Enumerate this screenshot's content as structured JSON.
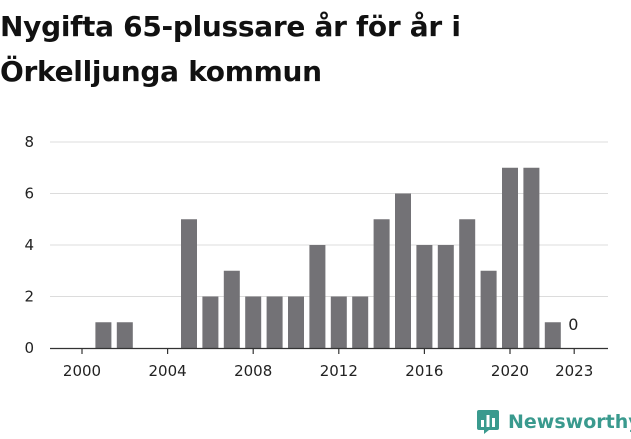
{
  "title": "Nygifta 65-plussare år för år i Örkelljunga kommun",
  "brand": {
    "name": "Newsworthy",
    "color": "#3a9a8e"
  },
  "colors": {
    "bar": "#737276",
    "grid": "#dcdcdc",
    "axis": "#333333"
  },
  "chart_data": {
    "type": "bar",
    "title": "Nygifta 65-plussare år för år i Örkelljunga kommun",
    "xlabel": "",
    "ylabel": "",
    "categories": [
      "2000",
      "2001",
      "2002",
      "2003",
      "2004",
      "2005",
      "2006",
      "2007",
      "2008",
      "2009",
      "2010",
      "2011",
      "2012",
      "2013",
      "2014",
      "2015",
      "2016",
      "2017",
      "2018",
      "2019",
      "2020",
      "2021",
      "2022",
      "2023"
    ],
    "values": [
      0,
      1,
      1,
      0,
      0,
      5,
      2,
      3,
      2,
      2,
      2,
      4,
      2,
      2,
      5,
      6,
      4,
      4,
      5,
      3,
      7,
      7,
      1,
      0
    ],
    "x_tick_labels": [
      "2000",
      "2004",
      "2008",
      "2012",
      "2016",
      "2020",
      "2023"
    ],
    "y_ticks": [
      0,
      2,
      4,
      6,
      8
    ],
    "ylim": [
      0,
      8
    ],
    "grid": true,
    "annotations": [
      {
        "category": "2023",
        "text": "0"
      }
    ]
  }
}
